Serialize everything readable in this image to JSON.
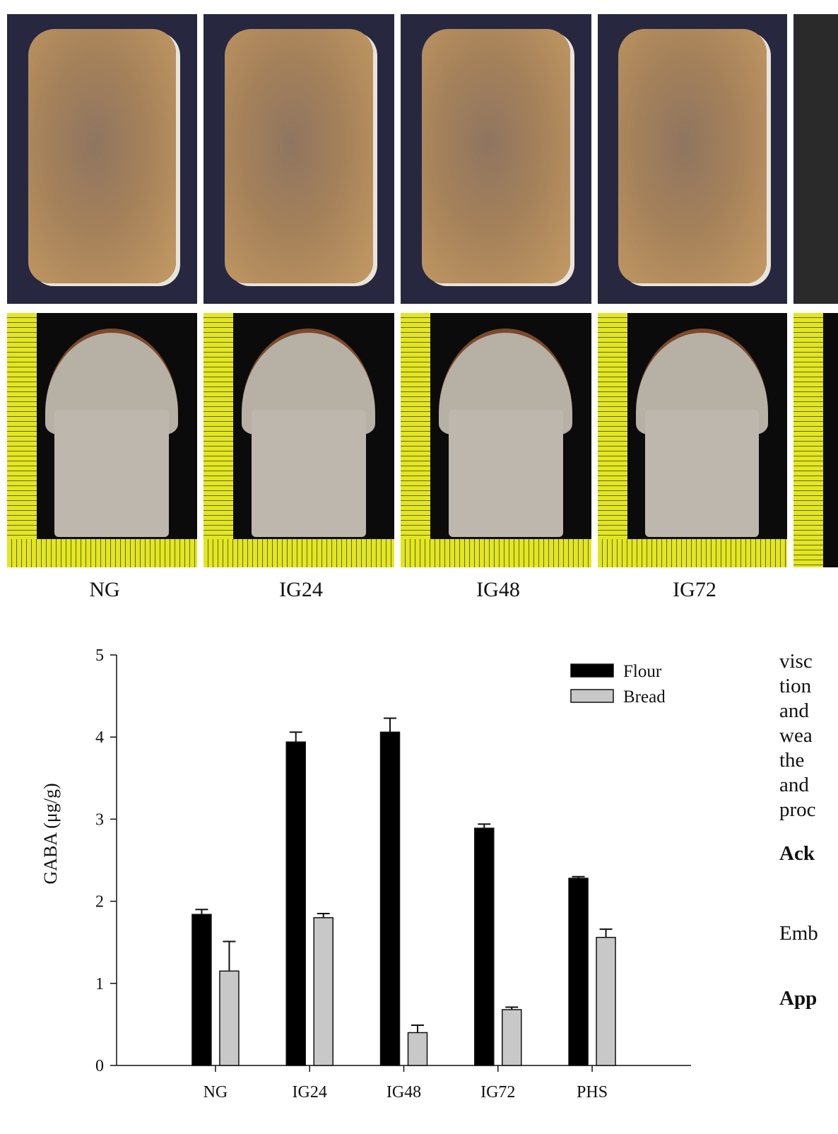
{
  "photo_labels": [
    "NG",
    "IG24",
    "IG48",
    "IG72"
  ],
  "side_text": {
    "lines": [
      "visc",
      "tion",
      "and",
      "wea",
      "the",
      "and",
      "proc"
    ],
    "heading_1": "Ack",
    "line_1": "Emb",
    "heading_2": "App"
  },
  "chart_data": {
    "type": "bar",
    "categories": [
      "NG",
      "IG24",
      "IG48",
      "IG72",
      "PHS"
    ],
    "series": [
      {
        "name": "Flour",
        "values": [
          1.84,
          3.94,
          4.06,
          2.89,
          2.28
        ],
        "errors": [
          0.06,
          0.12,
          0.17,
          0.05,
          0.02
        ],
        "color": "#000000"
      },
      {
        "name": "Bread",
        "values": [
          1.15,
          1.8,
          0.4,
          0.68,
          1.56
        ],
        "errors": [
          0.36,
          0.05,
          0.09,
          0.03,
          0.1
        ],
        "color": "#c8c8c8"
      }
    ],
    "ylabel": "GABA (μg/g)",
    "xlabel": "",
    "title": "",
    "ylim": [
      0,
      5
    ],
    "yticks": [
      "0",
      "1",
      "2",
      "3",
      "4",
      "5"
    ],
    "legend": "top-right",
    "grid": false
  }
}
